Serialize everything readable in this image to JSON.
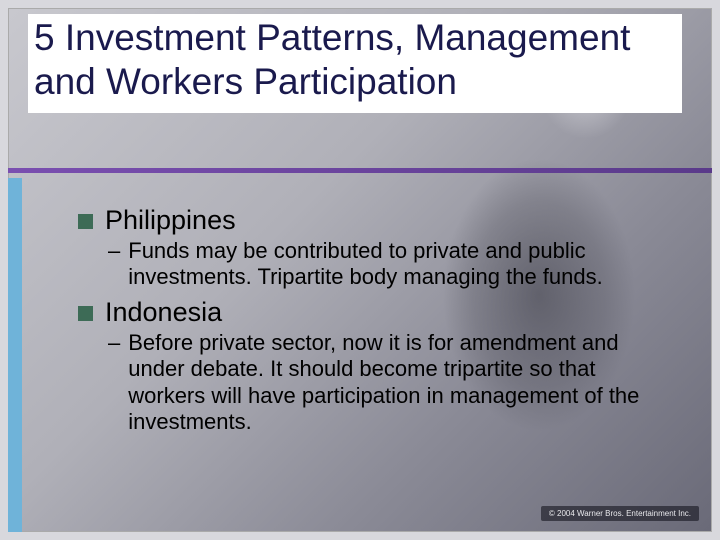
{
  "title": "5 Investment Patterns, Management and Workers Participation",
  "copyright": "© 2004 Warner Bros. Entertainment Inc.",
  "colors": {
    "title_color": "#1a1a4d",
    "accent_bar": "#6fb3d9",
    "rule": "#7a4fb0",
    "bullet": "#3d6b56",
    "body_text": "#000000",
    "slide_bg": "#ffffff"
  },
  "typography": {
    "title_fontsize": 37,
    "item_title_fontsize": 27,
    "item_text_fontsize": 22,
    "font_family": "Arial"
  },
  "items": [
    {
      "label": "Philippines",
      "dash": "–",
      "text": "Funds may be contributed to private and public investments. Tripartite body managing the funds."
    },
    {
      "label": "Indonesia",
      "dash": "–",
      "text": "Before private sector, now it is for amendment and under debate. It should become tripartite so that workers will have participation in management of the investments."
    }
  ]
}
